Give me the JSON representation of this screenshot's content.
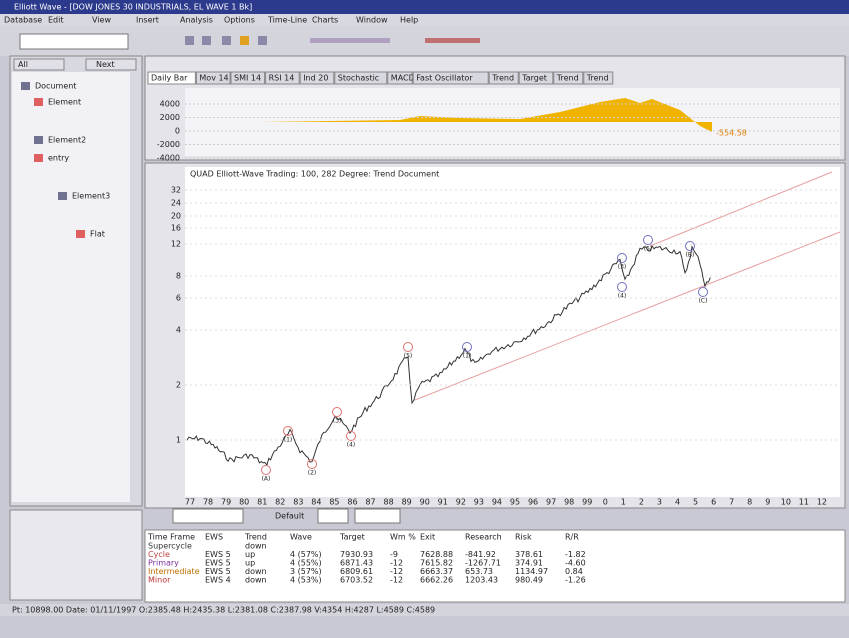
{
  "window": {
    "title": "Elliott Wave - [DOW JONES 30 INDUSTRIALS, EL WAVE 1 Bk]",
    "menu": [
      "Database",
      "Edit",
      "View",
      "Insert",
      "Analysis",
      "Options",
      "Time-Line",
      "Charts",
      "Window",
      "Help"
    ]
  },
  "left_panel": {
    "buttons": [
      "All",
      "Next"
    ],
    "tree": [
      "Document",
      "Element",
      "Element2",
      "entry",
      "Element3",
      "Flat"
    ]
  },
  "tabs": [
    "Daily Bar",
    "Mov 14",
    "SMI 14",
    "RSI 14",
    "Ind 20",
    "Stochastic",
    "MACD",
    "Fast Oscillator",
    "Trend",
    "Target",
    "Trend",
    "Trend"
  ],
  "oscillator": {
    "ticks": [
      "4000",
      "2000",
      "0",
      "-2000",
      "-4000"
    ],
    "note": "-554.58"
  },
  "chart": {
    "title": "QUAD Elliott-Wave Trading: 100, 282 Degree: Trend Document",
    "yticks": [
      "32",
      "24",
      "20",
      "16",
      "12",
      "8",
      "6",
      "4",
      "2",
      "1"
    ],
    "xticks": [
      "77",
      "78",
      "79",
      "80",
      "81",
      "82",
      "83",
      "84",
      "85",
      "86",
      "87",
      "88",
      "89",
      "90",
      "91",
      "92",
      "93",
      "94",
      "95",
      "96",
      "97",
      "98",
      "99",
      "0",
      "1",
      "2",
      "3",
      "4",
      "5",
      "6",
      "7",
      "8",
      "9",
      "10",
      "11",
      "12"
    ],
    "waves": [
      "(A)",
      "(1)",
      "(2)",
      "(3)",
      "(4)",
      "(5)",
      "(1)",
      "(3)",
      "(5)",
      "(4)",
      "(B)",
      "(C)"
    ]
  },
  "controls": {
    "label": "Default"
  },
  "table": {
    "headers": [
      "Time Frame",
      "EWS",
      "Trend",
      "Wave",
      "Target",
      "Wm %",
      "Exit",
      "Research",
      "Risk",
      "R/R"
    ],
    "rows": [
      [
        "Supercycle",
        "",
        "down",
        "",
        "",
        "",
        "",
        "",
        "",
        ""
      ],
      [
        "Cycle",
        "EWS 5",
        "up",
        "4 (57%)",
        "7930.93",
        "-9",
        "7628.88",
        "-841.92",
        "378.61",
        "-1.82"
      ],
      [
        "Primary",
        "EWS 5",
        "up",
        "4 (55%)",
        "6871.43",
        "-12",
        "7615.82",
        "-1267.71",
        "374.91",
        "-4.60"
      ],
      [
        "Intermediate",
        "EWS 5",
        "down",
        "3 (57%)",
        "6809.61",
        "-12",
        "6663.37",
        "653.73",
        "1134.97",
        "0.84"
      ],
      [
        "Minor",
        "EWS 4",
        "down",
        "4 (53%)",
        "6703.52",
        "-12",
        "6662.26",
        "1203.43",
        "980.49",
        "-1.26"
      ]
    ]
  },
  "status": "Pt: 10898.00  Date: 01/11/1997  O:2385.48  H:2435.38  L:2381.08  C:2387.98  V:4354  H:4287  L:4589  C:4589"
}
